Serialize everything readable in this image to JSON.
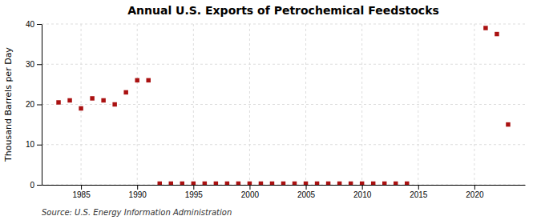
{
  "chart_data": {
    "type": "scatter",
    "title": "Annual U.S. Exports of Petrochemical Feedstocks",
    "ylabel": "Thousand Barrels per Day",
    "annotation": "Source: U.S. Energy Information Administration",
    "x": [
      1983,
      1984,
      1985,
      1986,
      1987,
      1988,
      1989,
      1990,
      1991,
      1992,
      1993,
      1994,
      1995,
      1996,
      1997,
      1998,
      1999,
      2000,
      2001,
      2002,
      2003,
      2004,
      2005,
      2006,
      2007,
      2008,
      2009,
      2010,
      2011,
      2012,
      2013,
      2014,
      2021,
      2022,
      2023
    ],
    "values": [
      20.5,
      21.0,
      19.0,
      21.5,
      21.0,
      20.0,
      23.0,
      26.0,
      26.0,
      0.3,
      0.3,
      0.3,
      0.3,
      0.3,
      0.3,
      0.3,
      0.3,
      0.3,
      0.3,
      0.3,
      0.3,
      0.3,
      0.3,
      0.3,
      0.3,
      0.3,
      0.3,
      0.3,
      0.3,
      0.3,
      0.3,
      0.3,
      39.0,
      37.5,
      15.0
    ],
    "color": "#aa1111",
    "marker": "square",
    "xlim": [
      1981.5,
      2024.5
    ],
    "xticks": [
      1985,
      1990,
      1995,
      2000,
      2005,
      2010,
      2015,
      2020
    ],
    "ylim": [
      0,
      40
    ],
    "yticks": [
      0,
      10,
      20,
      30,
      40
    ],
    "grid": true
  }
}
